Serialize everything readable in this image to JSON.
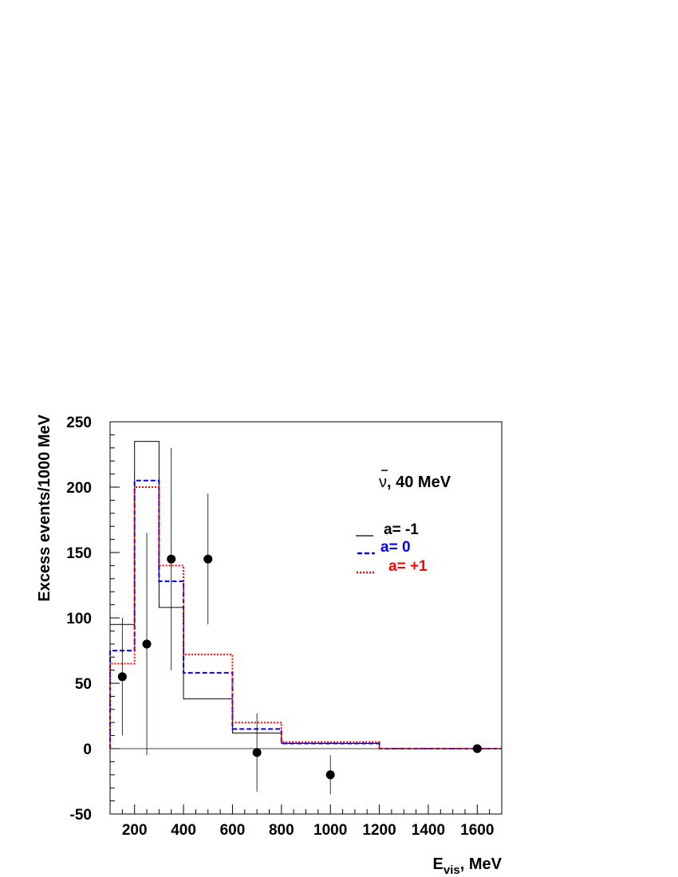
{
  "chart_data": {
    "type": "line",
    "ylabel": "Excess events/1000 MeV",
    "xlabel": {
      "main": "E",
      "sub": "vis",
      "rest": ", MeV"
    },
    "annotation": {
      "symbol": "ν",
      "rest": ", 40 MeV"
    },
    "xlim": [
      100,
      1700
    ],
    "ylim": [
      -50,
      250
    ],
    "x_ticks": [
      200,
      400,
      600,
      800,
      1000,
      1200,
      1400,
      1600
    ],
    "y_ticks": [
      -50,
      0,
      50,
      100,
      150,
      200,
      250
    ],
    "bin_edges": [
      100,
      200,
      300,
      400,
      600,
      800,
      1200,
      1700
    ],
    "series": [
      {
        "name": "a= -1",
        "style": "solid",
        "color": "#000000",
        "values": [
          95,
          235,
          108,
          38,
          12,
          4,
          0
        ]
      },
      {
        "name": "a= 0",
        "style": "dashed",
        "color": "#0000ff",
        "values": [
          75,
          205,
          128,
          58,
          15,
          4,
          0
        ]
      },
      {
        "name": "a= +1",
        "style": "dotted",
        "color": "#ff0000",
        "values": [
          65,
          200,
          140,
          72,
          20,
          5,
          0
        ]
      }
    ],
    "data_points": [
      {
        "x": 150,
        "y": 55,
        "ylo": 10,
        "yhi": 100
      },
      {
        "x": 250,
        "y": 80,
        "ylo": -5,
        "yhi": 165
      },
      {
        "x": 350,
        "y": 145,
        "ylo": 60,
        "yhi": 230
      },
      {
        "x": 500,
        "y": 145,
        "ylo": 95,
        "yhi": 195
      },
      {
        "x": 700,
        "y": -3,
        "ylo": -33,
        "yhi": 27
      },
      {
        "x": 1000,
        "y": -20,
        "ylo": -35,
        "yhi": -5
      },
      {
        "x": 1600,
        "y": 0,
        "ylo": 0,
        "yhi": 0
      }
    ],
    "grid": false,
    "legend_position": "upper-right inside"
  }
}
